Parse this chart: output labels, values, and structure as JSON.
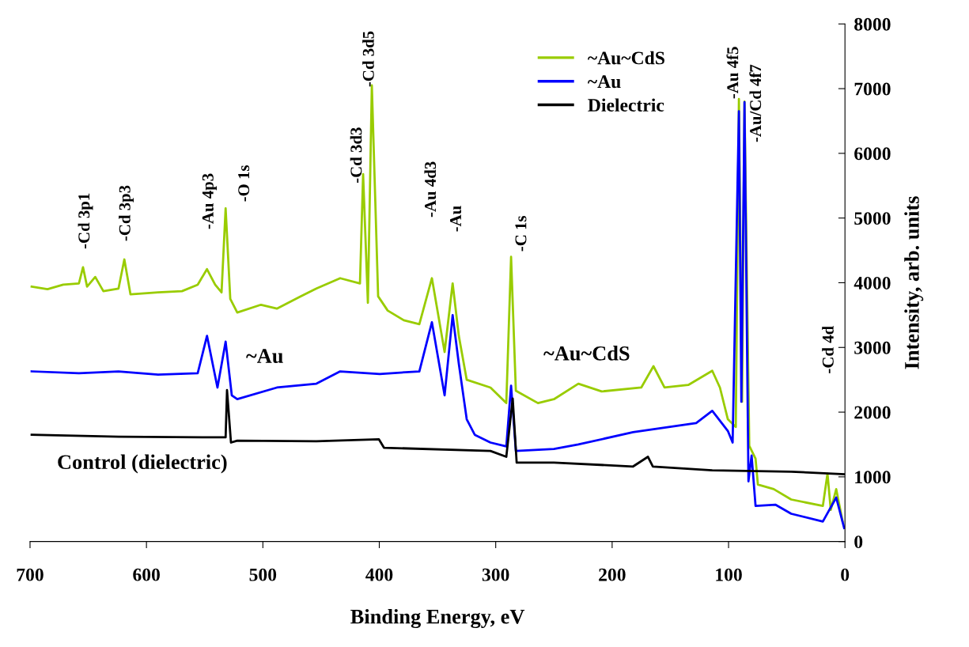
{
  "chart_data": {
    "type": "line",
    "xlabel": "Binding Energy, eV",
    "ylabel": "Intensity, arb. units",
    "xlim": [
      700,
      0
    ],
    "xticks": [
      700,
      600,
      500,
      400,
      300,
      200,
      100,
      0
    ],
    "ylim": [
      0,
      8000
    ],
    "yticks": [
      0,
      1000,
      2000,
      3000,
      4000,
      5000,
      6000,
      7000,
      8000
    ],
    "grid": false,
    "legend": "top right",
    "marker": "none",
    "line_style": "solid",
    "series": [
      {
        "name": "~Au~CdS",
        "color": "#99cc00",
        "x": [
          698.6,
          685,
          671.5,
          658,
          654.5,
          651,
          644,
          637,
          624,
          619,
          613.7,
          590,
          569.5,
          556,
          548,
          541,
          535.5,
          532,
          528,
          522,
          501.6,
          488,
          467.6,
          454,
          433.6,
          416.6,
          413.9,
          409.8,
          406.4,
          401,
          392.8,
          379,
          365.6,
          354.8,
          343.9,
          337,
          331.7,
          324.9,
          304.5,
          290.9,
          286.8,
          282.7,
          263.7,
          250,
          229,
          209,
          175,
          164.5,
          155,
          134.6,
          114,
          107.4,
          100.6,
          93.8,
          91.1,
          88.4,
          86.3,
          82.2,
          76.8,
          74.8,
          61.2,
          46.2,
          19,
          15,
          12.2,
          7.5,
          2
        ],
        "values": [
          3940,
          3900,
          3970,
          3990,
          4240,
          3940,
          4090,
          3870,
          3910,
          4360,
          3820,
          3850,
          3870,
          3970,
          4210,
          3970,
          3850,
          5150,
          3750,
          3540,
          3660,
          3600,
          3790,
          3910,
          4070,
          3990,
          5680,
          3690,
          7050,
          3790,
          3570,
          3420,
          3360,
          4070,
          2930,
          3990,
          3180,
          2500,
          2380,
          2140,
          4400,
          2330,
          2140,
          2200,
          2440,
          2320,
          2380,
          2710,
          2380,
          2420,
          2640,
          2380,
          1890,
          1770,
          6840,
          2160,
          6800,
          1480,
          1280,
          880,
          810,
          650,
          550,
          1050,
          490,
          810,
          310
        ]
      },
      {
        "name": "~Au",
        "color": "#0000ff",
        "x": [
          698.6,
          658,
          624,
          590,
          556,
          548,
          539,
          532,
          526.7,
          522,
          488,
          454,
          433.6,
          399.6,
          365.6,
          354.8,
          343.9,
          337,
          331.7,
          324.9,
          318,
          304.5,
          290.9,
          286.8,
          282.7,
          250,
          229,
          182,
          127.8,
          114,
          100.6,
          96.5,
          91.1,
          89,
          86.3,
          82.9,
          80.2,
          76.8,
          59.8,
          46.2,
          19,
          7.5,
          0.7
        ],
        "values": [
          2630,
          2600,
          2630,
          2580,
          2600,
          3180,
          2380,
          3090,
          2260,
          2200,
          2380,
          2440,
          2630,
          2590,
          2630,
          3390,
          2260,
          3500,
          2750,
          1890,
          1650,
          1530,
          1470,
          2410,
          1400,
          1430,
          1500,
          1690,
          1830,
          2020,
          1710,
          1530,
          6650,
          2160,
          6790,
          930,
          1330,
          550,
          570,
          430,
          310,
          680,
          210
        ]
      },
      {
        "name": "Dielectric",
        "color": "#000000",
        "x": [
          698.6,
          624,
          532,
          530.8,
          527.4,
          522,
          454,
          400.3,
          396,
          304.5,
          290.9,
          285.4,
          282,
          250,
          182,
          169.2,
          165,
          114,
          46.2,
          0.7
        ],
        "values": [
          1650,
          1620,
          1610,
          2340,
          1530,
          1560,
          1550,
          1580,
          1450,
          1400,
          1310,
          2210,
          1220,
          1220,
          1160,
          1310,
          1160,
          1100,
          1080,
          1040
        ]
      }
    ],
    "annotations": [
      "-Cd 3p1",
      "-Cd 3p3",
      "-Au 4p3",
      "-O 1s",
      "-Cd 3d3",
      "-Cd 3d5",
      "-Au 4d3",
      "-Au",
      "-C 1s",
      "-Au 4f5",
      "-Au/Cd 4f7",
      "-Cd 4d",
      "~Au",
      "~Au~CdS",
      "Control (dielectric)"
    ]
  }
}
